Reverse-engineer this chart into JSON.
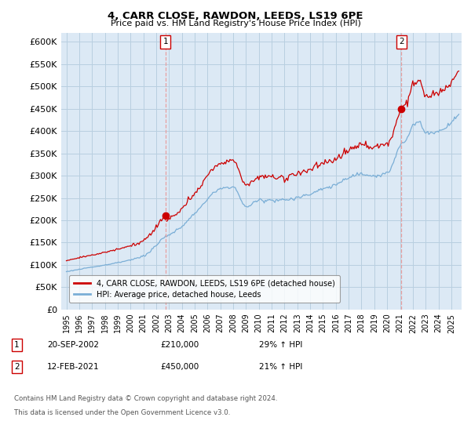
{
  "title": "4, CARR CLOSE, RAWDON, LEEDS, LS19 6PE",
  "subtitle": "Price paid vs. HM Land Registry's House Price Index (HPI)",
  "ylim": [
    0,
    620000
  ],
  "yticks": [
    0,
    50000,
    100000,
    150000,
    200000,
    250000,
    300000,
    350000,
    400000,
    450000,
    500000,
    550000,
    600000
  ],
  "legend_label_red": "4, CARR CLOSE, RAWDON, LEEDS, LS19 6PE (detached house)",
  "legend_label_blue": "HPI: Average price, detached house, Leeds",
  "sale1_date": "20-SEP-2002",
  "sale1_price": "£210,000",
  "sale1_hpi": "29% ↑ HPI",
  "sale1_year": 2002.72,
  "sale1_value": 210000,
  "sale2_date": "12-FEB-2021",
  "sale2_price": "£450,000",
  "sale2_hpi": "21% ↑ HPI",
  "sale2_year": 2021.12,
  "sale2_value": 450000,
  "footnote_line1": "Contains HM Land Registry data © Crown copyright and database right 2024.",
  "footnote_line2": "This data is licensed under the Open Government Licence v3.0.",
  "red_color": "#cc0000",
  "blue_color": "#7aaed6",
  "plot_bg_color": "#dce9f5",
  "background_color": "#ffffff",
  "grid_color": "#b8cfe0",
  "dashed_color": "#e8a0a0"
}
